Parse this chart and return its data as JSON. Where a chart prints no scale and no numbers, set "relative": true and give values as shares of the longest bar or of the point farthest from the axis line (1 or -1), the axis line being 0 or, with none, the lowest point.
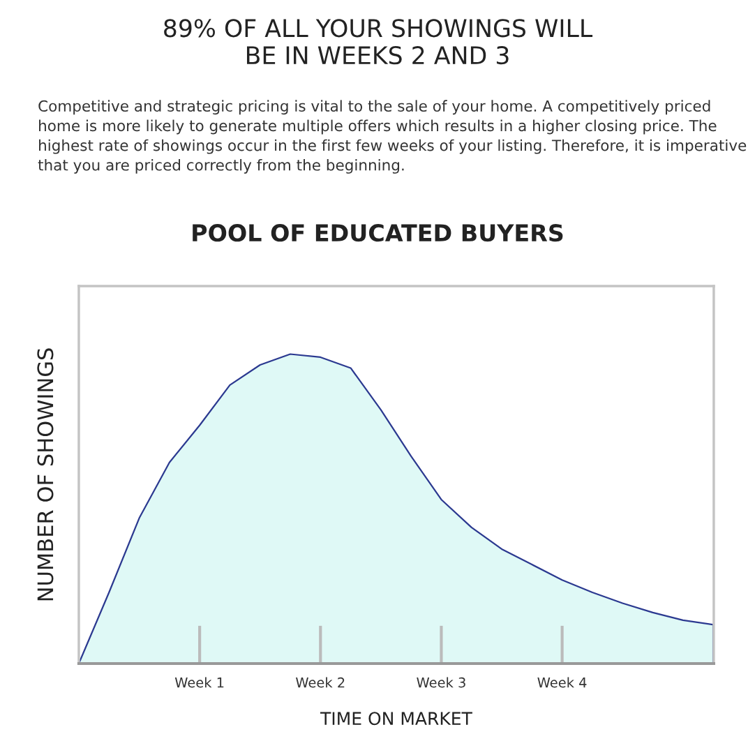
{
  "chart_data": {
    "type": "area",
    "title": "89% OF ALL YOUR SHOWINGS WILL\nBE IN WEEKS 2 AND 3",
    "subtitle": "Competitive and strategic pricing is vital to the sale of your home. A competitively priced home is more likely to generate multiple offers which results in a higher closing price. The highest rate of showings occur in the first few weeks of your listing. Therefore, it is imperative that you are priced correctly from the beginning.",
    "annotations": [
      "POOL OF EDUCATED BUYERS"
    ],
    "xlabel": "TIME ON MARKET",
    "ylabel": "NUMBER OF SHOWINGS",
    "relative": true,
    "categories": [
      null,
      null,
      null,
      null,
      "Week 1",
      null,
      null,
      null,
      "Week 2",
      null,
      null,
      null,
      "Week 3",
      null,
      null,
      null,
      "Week 4",
      null,
      null,
      null,
      null,
      null
    ],
    "series": [
      {
        "color": "#2b3990",
        "values": [
          0,
          0.23,
          0.47,
          0.65,
          0.77,
          0.9,
          0.965,
          1.0,
          0.99,
          0.955,
          0.82,
          0.67,
          0.53,
          0.44,
          0.37,
          0.32,
          0.27,
          0.23,
          0.195,
          0.165,
          0.14,
          0.126
        ]
      }
    ],
    "tick_labels": "x",
    "grid": false
  }
}
